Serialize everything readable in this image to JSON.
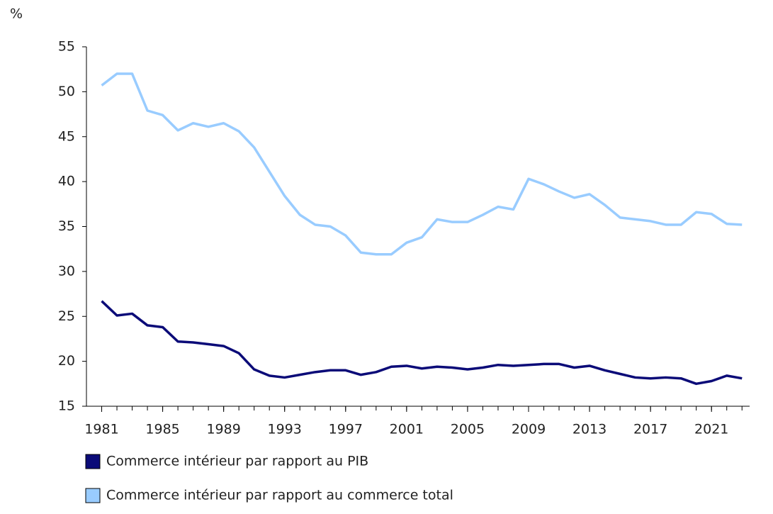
{
  "chart_data": {
    "type": "line",
    "y_label": "%",
    "x": [
      1981,
      1982,
      1983,
      1984,
      1985,
      1986,
      1987,
      1988,
      1989,
      1990,
      1991,
      1992,
      1993,
      1994,
      1995,
      1996,
      1997,
      1998,
      1999,
      2000,
      2001,
      2002,
      2003,
      2004,
      2005,
      2006,
      2007,
      2008,
      2009,
      2010,
      2011,
      2012,
      2013,
      2014,
      2015,
      2016,
      2017,
      2018,
      2019,
      2020,
      2021,
      2022,
      2023
    ],
    "series": [
      {
        "name": "Commerce intérieur par rapport au PIB",
        "color": "#0b0b78",
        "values": [
          26.7,
          25.1,
          25.3,
          24.0,
          23.8,
          22.2,
          22.1,
          21.9,
          21.7,
          20.9,
          19.1,
          18.4,
          18.2,
          18.5,
          18.8,
          19.0,
          19.0,
          18.5,
          18.8,
          19.4,
          19.5,
          19.2,
          19.4,
          19.3,
          19.1,
          19.3,
          19.6,
          19.5,
          19.6,
          19.7,
          19.7,
          19.3,
          19.5,
          19.0,
          18.6,
          18.2,
          18.1,
          18.2,
          18.1,
          17.5,
          17.8,
          18.4,
          18.1
        ]
      },
      {
        "name": "Commerce intérieur par rapport au commerce total",
        "color": "#99ccff",
        "values": [
          50.7,
          52.0,
          52.0,
          47.9,
          47.4,
          45.7,
          46.5,
          46.1,
          46.5,
          45.6,
          43.8,
          41.1,
          38.4,
          36.3,
          35.2,
          35.0,
          34.0,
          32.1,
          31.9,
          31.9,
          33.2,
          33.8,
          35.8,
          35.5,
          35.5,
          36.3,
          37.2,
          36.9,
          40.3,
          39.7,
          38.9,
          38.2,
          38.6,
          37.4,
          36.0,
          35.8,
          35.6,
          35.2,
          35.2,
          36.6,
          36.4,
          35.3,
          35.2
        ]
      }
    ],
    "xlim": [
      1980,
      2023.5
    ],
    "xticks": [
      1981,
      1985,
      1989,
      1993,
      1997,
      2001,
      2005,
      2009,
      2013,
      2017,
      2021
    ],
    "ylim": [
      15,
      55
    ],
    "yticks": [
      15,
      20,
      25,
      30,
      35,
      40,
      45,
      50,
      55
    ],
    "grid": false
  }
}
